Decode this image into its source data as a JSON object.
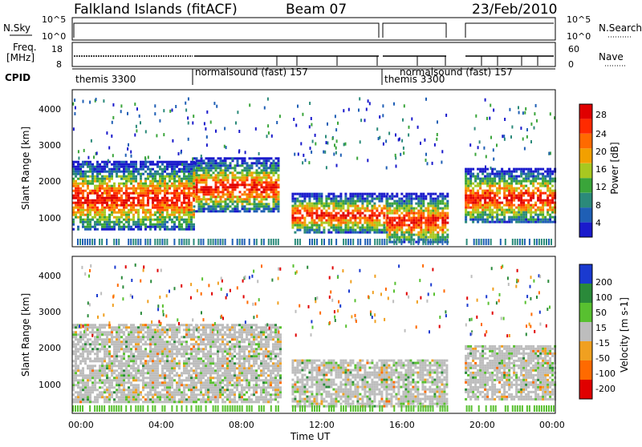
{
  "header": {
    "station": "Falkland Islands (fitACF)",
    "beam": "Beam 07",
    "date": "23/Feb/2010"
  },
  "top_panel": {
    "left_label": "N.Sky",
    "right_label": "N.Search",
    "left_ticks": [
      "10^5",
      "10^0"
    ],
    "right_ticks": [
      "10^5",
      "10^0"
    ]
  },
  "freq_panel": {
    "left_label": "Freq. [MHz]",
    "right_label": "Nave",
    "left_ticks": [
      "18",
      "8"
    ],
    "right_ticks": [
      "60",
      "0"
    ]
  },
  "cpid": {
    "label": "CPID",
    "modes": [
      {
        "text": "themis 3300",
        "start_hour": 0.0
      },
      {
        "text": "normalsound (fast) 157",
        "start_hour": 6.0
      },
      {
        "text": "themis 3300",
        "start_hour": 15.6
      },
      {
        "text": "normalsound (fast) 157",
        "start_hour": 16.8
      }
    ]
  },
  "power_panel": {
    "ylabel": "Slant Range [km]",
    "yticks": [
      "1000",
      "2000",
      "3000",
      "4000"
    ],
    "colorbar_label": "Power [dB]",
    "colorbar_ticks": [
      "28",
      "24",
      "20",
      "16",
      "12",
      "8",
      "4"
    ]
  },
  "velocity_panel": {
    "ylabel": "Slant Range [km]",
    "yticks": [
      "1000",
      "2000",
      "3000",
      "4000"
    ],
    "colorbar_label": "Velocity [m s-1]",
    "colorbar_ticks": [
      "200",
      "100",
      "50",
      "15",
      "-15",
      "-50",
      "-100",
      "-200"
    ]
  },
  "xaxis": {
    "label": "Time UT",
    "ticks": [
      "00:00",
      "04:00",
      "08:00",
      "12:00",
      "16:00",
      "20:00",
      "00:00"
    ]
  },
  "chart_data": {
    "type": "heatmap",
    "x_range_hours": [
      0,
      24
    ],
    "y_range_km": [
      180,
      4600
    ],
    "data_gaps_hours": [
      [
        10.3,
        10.9
      ],
      [
        18.6,
        19.5
      ]
    ],
    "power_colors": [
      "#1a1acc",
      "#1f5fb5",
      "#2b8a7a",
      "#3aa53a",
      "#a8c820",
      "#f2a000",
      "#ff6a00",
      "#ff2a00",
      "#e00000"
    ],
    "velocity_colors": [
      "#1a3ad0",
      "#2a8a3a",
      "#58c030",
      "#bdbdbd",
      "#f0a020",
      "#ff6a00",
      "#e00000"
    ],
    "power_regions": [
      {
        "t": [
          0.0,
          6.0
        ],
        "range_km": [
          700,
          2600
        ],
        "level": "high"
      },
      {
        "t": [
          6.0,
          10.3
        ],
        "range_km": [
          1200,
          2700
        ],
        "level": "high"
      },
      {
        "t": [
          10.9,
          15.6
        ],
        "range_km": [
          600,
          1700
        ],
        "level": "high"
      },
      {
        "t": [
          15.6,
          18.6
        ],
        "range_km": [
          300,
          1700
        ],
        "level": "very high"
      },
      {
        "t": [
          19.5,
          24.0
        ],
        "range_km": [
          900,
          2400
        ],
        "level": "high"
      }
    ],
    "velocity_regions": [
      {
        "t": [
          0.0,
          10.3
        ],
        "range_km": [
          500,
          2700
        ],
        "velocity_class": "-15 to 15"
      },
      {
        "t": [
          10.9,
          18.6
        ],
        "range_km": [
          400,
          1700
        ],
        "velocity_class": "-15 to 15"
      },
      {
        "t": [
          19.5,
          24.0
        ],
        "range_km": [
          600,
          2100
        ],
        "velocity_class": "-15 to 15"
      }
    ]
  }
}
